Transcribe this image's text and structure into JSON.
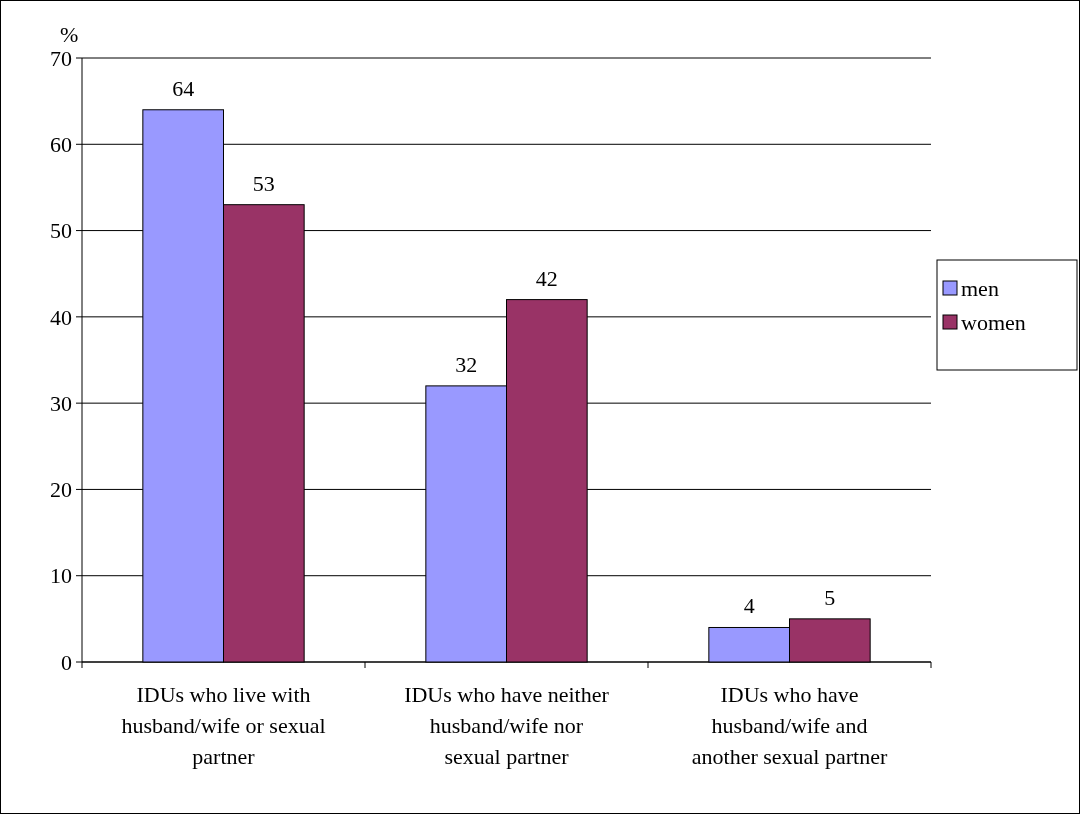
{
  "chart_data": {
    "type": "bar",
    "ylabel": "%",
    "categories": [
      "IDUs who live with husband/wife or sexual partner",
      "IDUs who have neither husband/wife nor sexual partner",
      "IDUs who have husband/wife and another sexual partner"
    ],
    "series": [
      {
        "name": "men",
        "color": "#9999ff",
        "values": [
          64,
          32,
          4
        ]
      },
      {
        "name": "women",
        "color": "#993366",
        "values": [
          53,
          42,
          5
        ]
      }
    ],
    "ylim": [
      0,
      70
    ],
    "yticks": [
      0,
      10,
      20,
      30,
      40,
      50,
      60,
      70
    ],
    "grid": "y",
    "legend": "right",
    "data_labels": true
  }
}
